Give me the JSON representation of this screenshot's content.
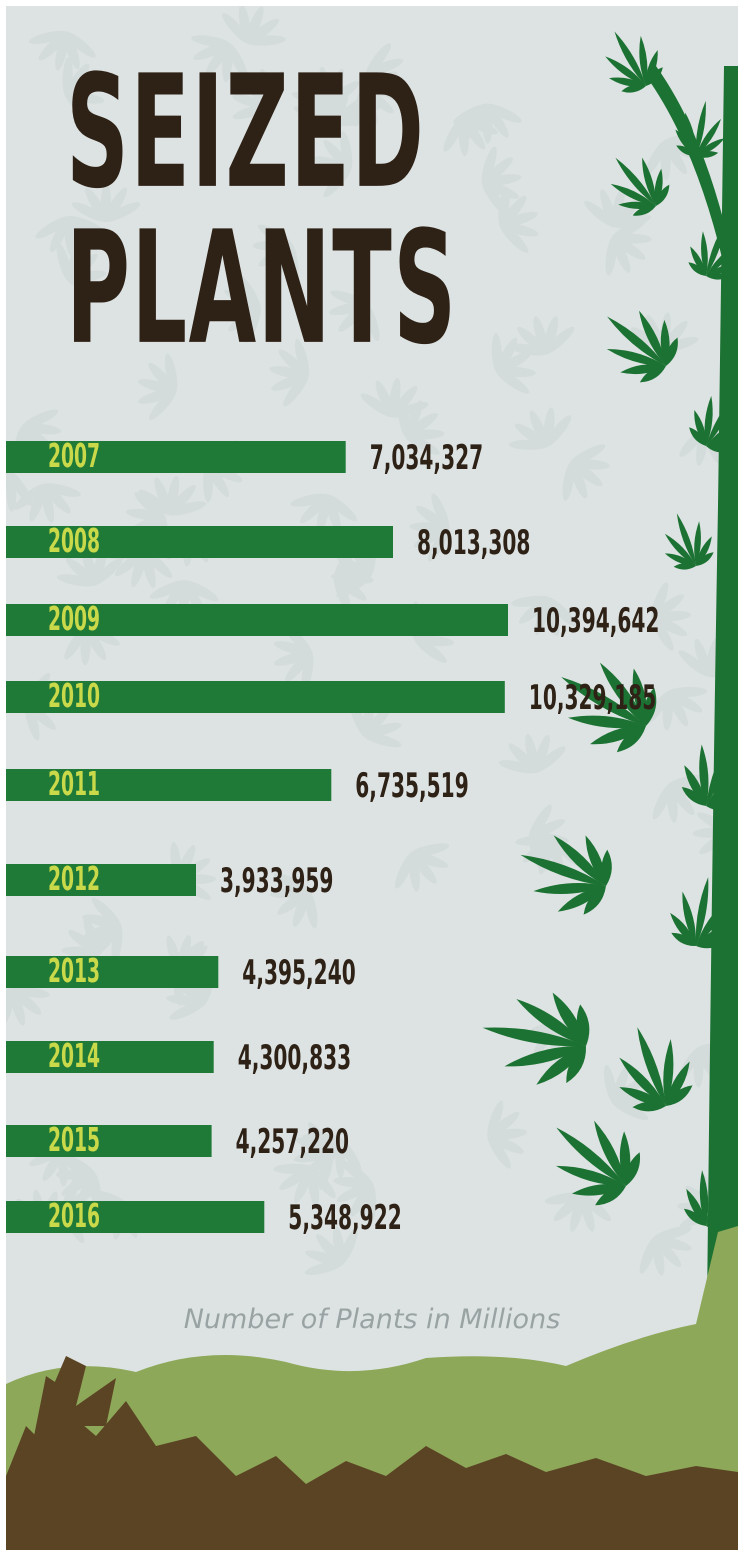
{
  "title_line1": "SEIZED",
  "title_line2": "PLANTS",
  "caption": "Number of Plants in Millions",
  "colors": {
    "bar": "#1f7a37",
    "year_label": "#c9d94a",
    "value_text": "#2e2116",
    "background": "#dde3e3",
    "plant": "#1c7232",
    "hill": "#8ea85a",
    "soil": "#5b4424"
  },
  "chart_data": {
    "type": "bar",
    "orientation": "horizontal",
    "categories": [
      "2007",
      "2008",
      "2009",
      "2010",
      "2011",
      "2012",
      "2013",
      "2014",
      "2015",
      "2016"
    ],
    "values": [
      7034327,
      8013308,
      10394642,
      10329185,
      6735519,
      3933959,
      4395240,
      4300833,
      4257220,
      5348922
    ],
    "value_labels": [
      "7,034,327",
      "8,013,308",
      "10,394,642",
      "10,329,185",
      "6,735,519",
      "3,933,959",
      "4,395,240",
      "4,300,833",
      "4,257,220",
      "5,348,922"
    ],
    "title": "SEIZED PLANTS",
    "xlabel": "Number of Plants in Millions",
    "ylabel": ""
  }
}
